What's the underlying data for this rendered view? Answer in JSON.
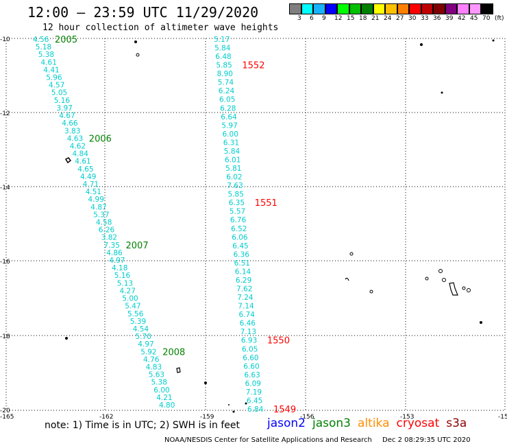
{
  "title": "12:00 – 23:59 UTC 11/29/2020",
  "subtitle": "12 hour collection of altimeter wave heights",
  "colorbar": {
    "colors": [
      "#7f7f7f",
      "#00ffff",
      "#19b2ff",
      "#0000ff",
      "#00ff00",
      "#00c000",
      "#008000",
      "#ffff00",
      "#ffc000",
      "#ff8000",
      "#ff0000",
      "#c00000",
      "#800000",
      "#800080",
      "#ff80ff",
      "#ff99ff",
      "#000000"
    ],
    "labels": [
      "3",
      "6",
      "9",
      "12",
      "15",
      "18",
      "21",
      "24",
      "27",
      "30",
      "33",
      "36",
      "39",
      "42",
      "45",
      "70",
      "(ft)"
    ]
  },
  "note": "note:  1) Time is in UTC;  2) SWH is in feet",
  "satellites": [
    {
      "name": "jason2",
      "color": "#0000ff"
    },
    {
      "name": "jason3",
      "color": "#008000"
    },
    {
      "name": "altika",
      "color": "#ff8c00"
    },
    {
      "name": "cryosat",
      "color": "#ff0000"
    },
    {
      "name": "s3a",
      "color": "#8b0000"
    }
  ],
  "footer": {
    "credit": "NOAA/NESDIS Center for Satellite Applications and Research",
    "timestamp": "Dec  2 08:29:35 UTC 2020"
  },
  "axes": {
    "lon_labels": [
      "-165",
      "-162",
      "-159",
      "-156",
      "-153",
      "-15"
    ],
    "lat_labels": [
      "-10",
      "-12",
      "-14",
      "-16",
      "-18",
      "-20"
    ]
  },
  "tracks": [
    {
      "sat": "jason3",
      "color": "#00cccc",
      "label_color": "#008000",
      "values": [
        "4.56",
        "5.18",
        "5.38",
        "4.61",
        "4.41",
        "5.96",
        "4.57",
        "5.05",
        "5.16",
        "3.97",
        "4.67",
        "4.66",
        "3.83",
        "4.63",
        "4.62",
        "4.84",
        "4.61",
        "4.65",
        "4.49",
        "4.71",
        "4.51",
        "4.99",
        "4.87",
        "5.37",
        "4.58",
        "6.26",
        "3.82",
        "7.35",
        "4.86",
        "4.97",
        "4.18",
        "5.16",
        "5.13",
        "4.27",
        "5.00",
        "5.47",
        "5.56",
        "5.39",
        "4.54",
        "5.70",
        "4.97",
        "5.92",
        "4.76",
        "4.83",
        "5.63",
        "5.38",
        "6.00",
        "4.21",
        "4.80"
      ],
      "time_labels": [
        {
          "text": "2005",
          "index": 0
        },
        {
          "text": "2006",
          "index": 13
        },
        {
          "text": "2007",
          "index": 27
        },
        {
          "text": "2008",
          "index": 41
        }
      ]
    },
    {
      "sat": "cryosat",
      "color": "#00cccc",
      "label_color": "#ff0000",
      "values": [
        "5.17",
        "5.84",
        "6.48",
        "5.85",
        "8.90",
        "5.74",
        "6.24",
        "6.05",
        "6.28",
        "6.64",
        "5.97",
        "6.00",
        "6.31",
        "5.84",
        "6.01",
        "5.81",
        "6.02",
        "7.63",
        "5.85",
        "6.35",
        "5.57",
        "6.76",
        "6.52",
        "6.06",
        "6.45",
        "6.36",
        "6.51",
        "6.14",
        "6.29",
        "7.62",
        "7.24",
        "7.14",
        "6.74",
        "6.46",
        "7.13",
        "6.93",
        "6.05",
        "6.60",
        "6.60",
        "6.63",
        "6.09",
        "7.19",
        "6.45",
        "6.84"
      ],
      "time_labels": [
        {
          "text": "1552",
          "index": 3
        },
        {
          "text": "1551",
          "index": 19
        },
        {
          "text": "1550",
          "index": 35
        },
        {
          "text": "1549",
          "index": 43
        }
      ]
    }
  ]
}
